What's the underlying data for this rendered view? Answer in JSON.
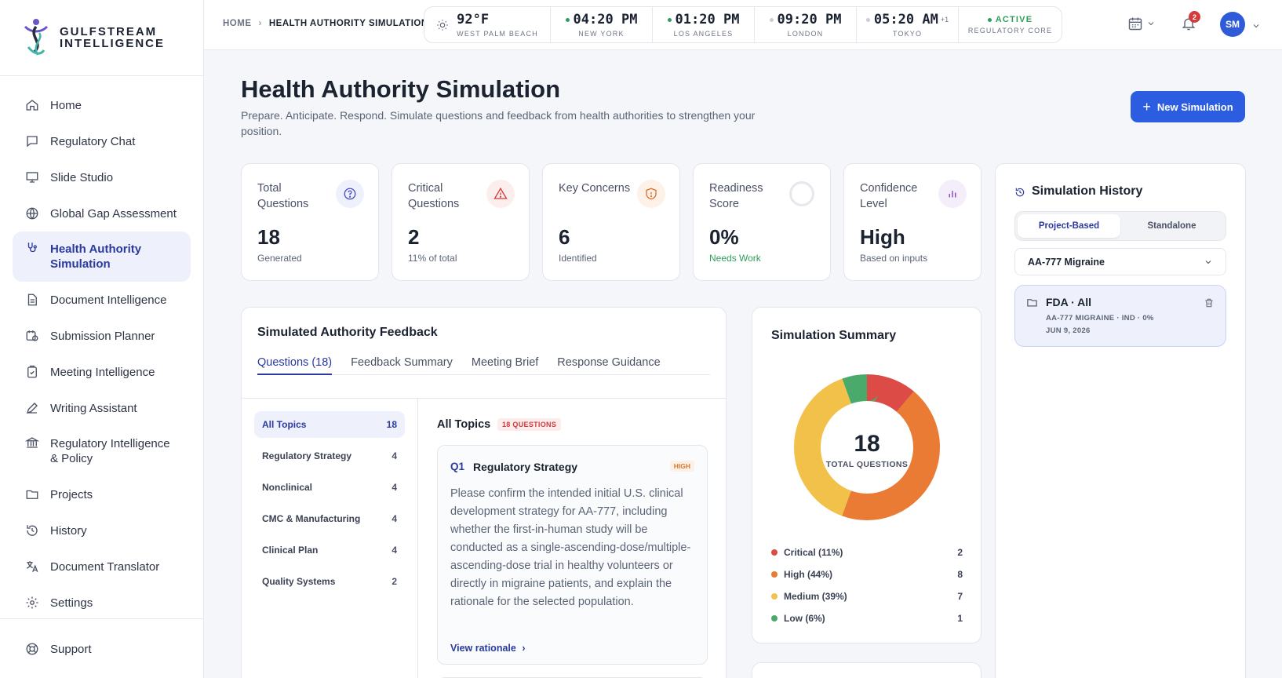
{
  "brand": {
    "line1": "GULFSTREAM",
    "line2": "INTELLIGENCE"
  },
  "nav": {
    "items": [
      {
        "label": "Home",
        "icon": "home-icon"
      },
      {
        "label": "Regulatory Chat",
        "icon": "chat-icon"
      },
      {
        "label": "Slide Studio",
        "icon": "presentation-icon"
      },
      {
        "label": "Global Gap Assessment",
        "icon": "globe-icon"
      },
      {
        "label": "Health Authority Simulation",
        "icon": "stethoscope-icon",
        "active": true
      },
      {
        "label": "Document Intelligence",
        "icon": "document-icon"
      },
      {
        "label": "Submission Planner",
        "icon": "calendar-clock-icon"
      },
      {
        "label": "Meeting Intelligence",
        "icon": "clipboard-icon"
      },
      {
        "label": "Writing Assistant",
        "icon": "pen-icon"
      },
      {
        "label": "Regulatory Intelligence & Policy",
        "icon": "bank-icon"
      },
      {
        "label": "Projects",
        "icon": "folder-icon"
      },
      {
        "label": "History",
        "icon": "history-icon"
      },
      {
        "label": "Document Translator",
        "icon": "translate-icon"
      },
      {
        "label": "Settings",
        "icon": "gear-icon"
      }
    ],
    "support": "Support"
  },
  "breadcrumb": {
    "home": "HOME",
    "current": "HEALTH AUTHORITY SIMULATION"
  },
  "clockbar": {
    "weather": {
      "temp": "92°F",
      "city": "WEST PALM BEACH"
    },
    "clocks": [
      {
        "time": "04:20 PM",
        "city": "NEW YORK",
        "dot": "#2e9e5a",
        "suffix": ""
      },
      {
        "time": "01:20 PM",
        "city": "LOS ANGELES",
        "dot": "#2e9e5a",
        "suffix": ""
      },
      {
        "time": "09:20 PM",
        "city": "LONDON",
        "dot": "#c9ccd3",
        "suffix": ""
      },
      {
        "time": "05:20 AM",
        "city": "TOKYO",
        "dot": "#c9ccd3",
        "suffix": "+1"
      }
    ],
    "status": {
      "label": "ACTIVE",
      "sub": "REGULATORY CORE"
    }
  },
  "topbar": {
    "notifications": "2",
    "avatar": "SM"
  },
  "page": {
    "title": "Health Authority Simulation",
    "subtitle": "Prepare. Anticipate. Respond. Simulate questions and feedback from health authorities to strengthen your position.",
    "new_button": "New Simulation"
  },
  "kpis": [
    {
      "label": "Total Questions",
      "value": "18",
      "sub": "Generated",
      "icon": "question-circle-icon",
      "color": "#4a4fc9",
      "bg": "#eef0fb"
    },
    {
      "label": "Critical Questions",
      "value": "2",
      "sub": "11% of total",
      "icon": "warning-icon",
      "color": "#d63b3b",
      "bg": "#fdeeee"
    },
    {
      "label": "Key Concerns",
      "value": "6",
      "sub": "Identified",
      "icon": "shield-icon",
      "color": "#e0712c",
      "bg": "#fdf1e8"
    },
    {
      "label": "Readiness Score",
      "value": "0%",
      "sub": "Needs Work",
      "icon": "progress-ring-icon",
      "progress": 0
    },
    {
      "label": "Confidence Level",
      "value": "High",
      "sub": "Based on inputs",
      "icon": "bar-chart-icon",
      "color": "#8b4fc9",
      "bg": "#f4eefb"
    }
  ],
  "feedback": {
    "title": "Simulated Authority Feedback",
    "tabs": [
      "Questions (18)",
      "Feedback Summary",
      "Meeting Brief",
      "Response Guidance"
    ],
    "topics": [
      {
        "label": "All Topics",
        "count": "18"
      },
      {
        "label": "Regulatory Strategy",
        "count": "4"
      },
      {
        "label": "Nonclinical",
        "count": "4"
      },
      {
        "label": "CMC & Manufacturing",
        "count": "4"
      },
      {
        "label": "Clinical Plan",
        "count": "4"
      },
      {
        "label": "Quality Systems",
        "count": "2"
      }
    ],
    "list_title": "All Topics",
    "list_badge": "18 QUESTIONS",
    "question": {
      "num": "Q1",
      "category": "Regulatory Strategy",
      "priority": "HIGH",
      "text": "Please confirm the intended initial U.S. clinical development strategy for AA-777, including whether the first-in-human study will be conducted as a single-ascending-dose/multiple-ascending-dose trial in healthy volunteers or directly in migraine patients, and explain the rationale for the selected population.",
      "link": "View rationale"
    }
  },
  "summary": {
    "title": "Simulation Summary",
    "center_value": "18",
    "center_label": "TOTAL QUESTIONS"
  },
  "chart_data": {
    "type": "pie",
    "categories": [
      "Critical (11%)",
      "High (44%)",
      "Medium (39%)",
      "Low (6%)"
    ],
    "values": [
      2,
      8,
      7,
      1
    ],
    "colors": [
      "#dc4b45",
      "#e97b34",
      "#f2c14a",
      "#4aaa6b"
    ],
    "title": "",
    "legend": "bottom"
  },
  "history": {
    "title": "Simulation History",
    "segments": [
      "Project-Based",
      "Standalone"
    ],
    "project": "AA-777 Migraine",
    "card": {
      "title": "FDA · All",
      "meta": "AA-777 MIGRAINE · IND · 0%",
      "date": "JUN 9, 2026"
    }
  }
}
